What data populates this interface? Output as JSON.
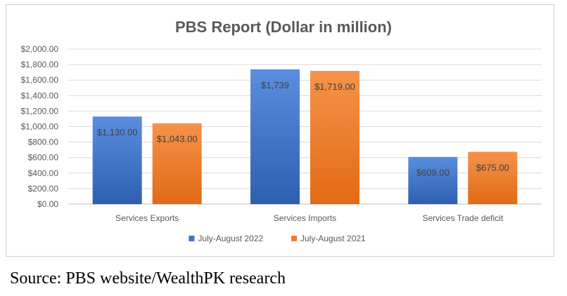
{
  "chart_data": {
    "type": "bar",
    "title": "PBS Report (Dollar in million)",
    "categories": [
      "Services Exports",
      "Services Imports",
      "Services Trade deficit"
    ],
    "series": [
      {
        "name": "July-August 2022",
        "values": [
          1130,
          1739,
          609
        ],
        "labels": [
          "$1,130.00",
          "$1,739",
          "$609.00"
        ],
        "color": "#4472c4"
      },
      {
        "name": "July-August 2021",
        "values": [
          1043,
          1719,
          675
        ],
        "labels": [
          "$1,043.00",
          "$1,719.00",
          "$675.00"
        ],
        "color": "#ed7d31"
      }
    ],
    "y_ticks": [
      "$0.00",
      "$200.00",
      "$400.00",
      "$600.00",
      "$800.00",
      "$1,000.00",
      "$1,200.00",
      "$1,400.00",
      "$1,600.00",
      "$1,800.00",
      "$2,000.00"
    ],
    "ylim": [
      0,
      2000
    ],
    "ytick_step": 200,
    "grid": true,
    "legend_position": "bottom"
  },
  "source_text": "Source: PBS website/WealthPK research"
}
